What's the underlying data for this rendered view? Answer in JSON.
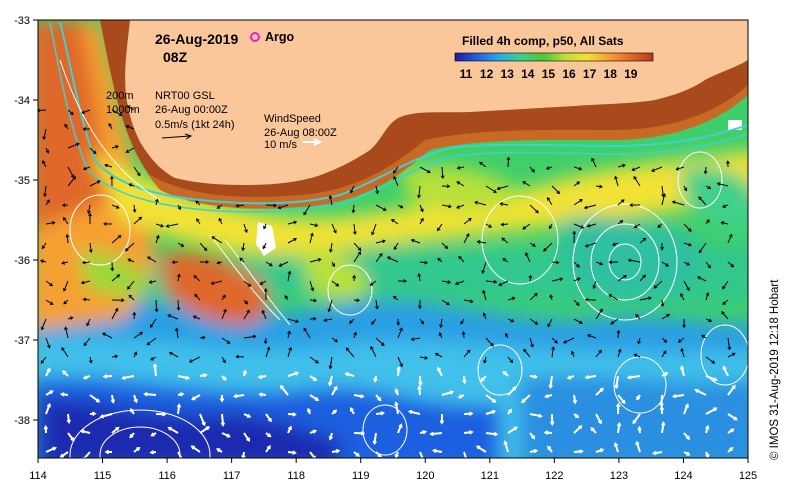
{
  "map": {
    "date": "26-Aug-2019",
    "time": "08Z",
    "argo_label": "Argo",
    "argo_color": "#e020e0",
    "product_title": "Filled 4h comp, p50, All Sats",
    "colorbar_ticks": [
      "11",
      "12",
      "13",
      "14",
      "15",
      "16",
      "17",
      "18",
      "19"
    ],
    "colorbar_colors": [
      "#1a1aa0",
      "#1f5fe0",
      "#28a8e8",
      "#3fd08a",
      "#49c63a",
      "#b8e03a",
      "#f2e234",
      "#f5a030",
      "#e0682a",
      "#b43a1c"
    ],
    "contour_labels": [
      "200m",
      "1000m"
    ],
    "currents_label": "NRT00 GSL",
    "currents_time": "26-Aug 00:00Z",
    "currents_scale": "0.5m/s (1kt 24h)",
    "wind_label": "WindSpeed",
    "wind_time": "26-Aug 08:00Z",
    "wind_scale": "10 m/s",
    "land_color": "#fac79b",
    "lon_ticks": [
      "114",
      "115",
      "116",
      "117",
      "118",
      "119",
      "120",
      "121",
      "122",
      "123",
      "124",
      "125"
    ],
    "lat_ticks": [
      "-33",
      "-34",
      "-35",
      "-36",
      "-37",
      "-38"
    ],
    "copyright": "© IMOS 31-Aug-2019 12:18 Hobart"
  }
}
